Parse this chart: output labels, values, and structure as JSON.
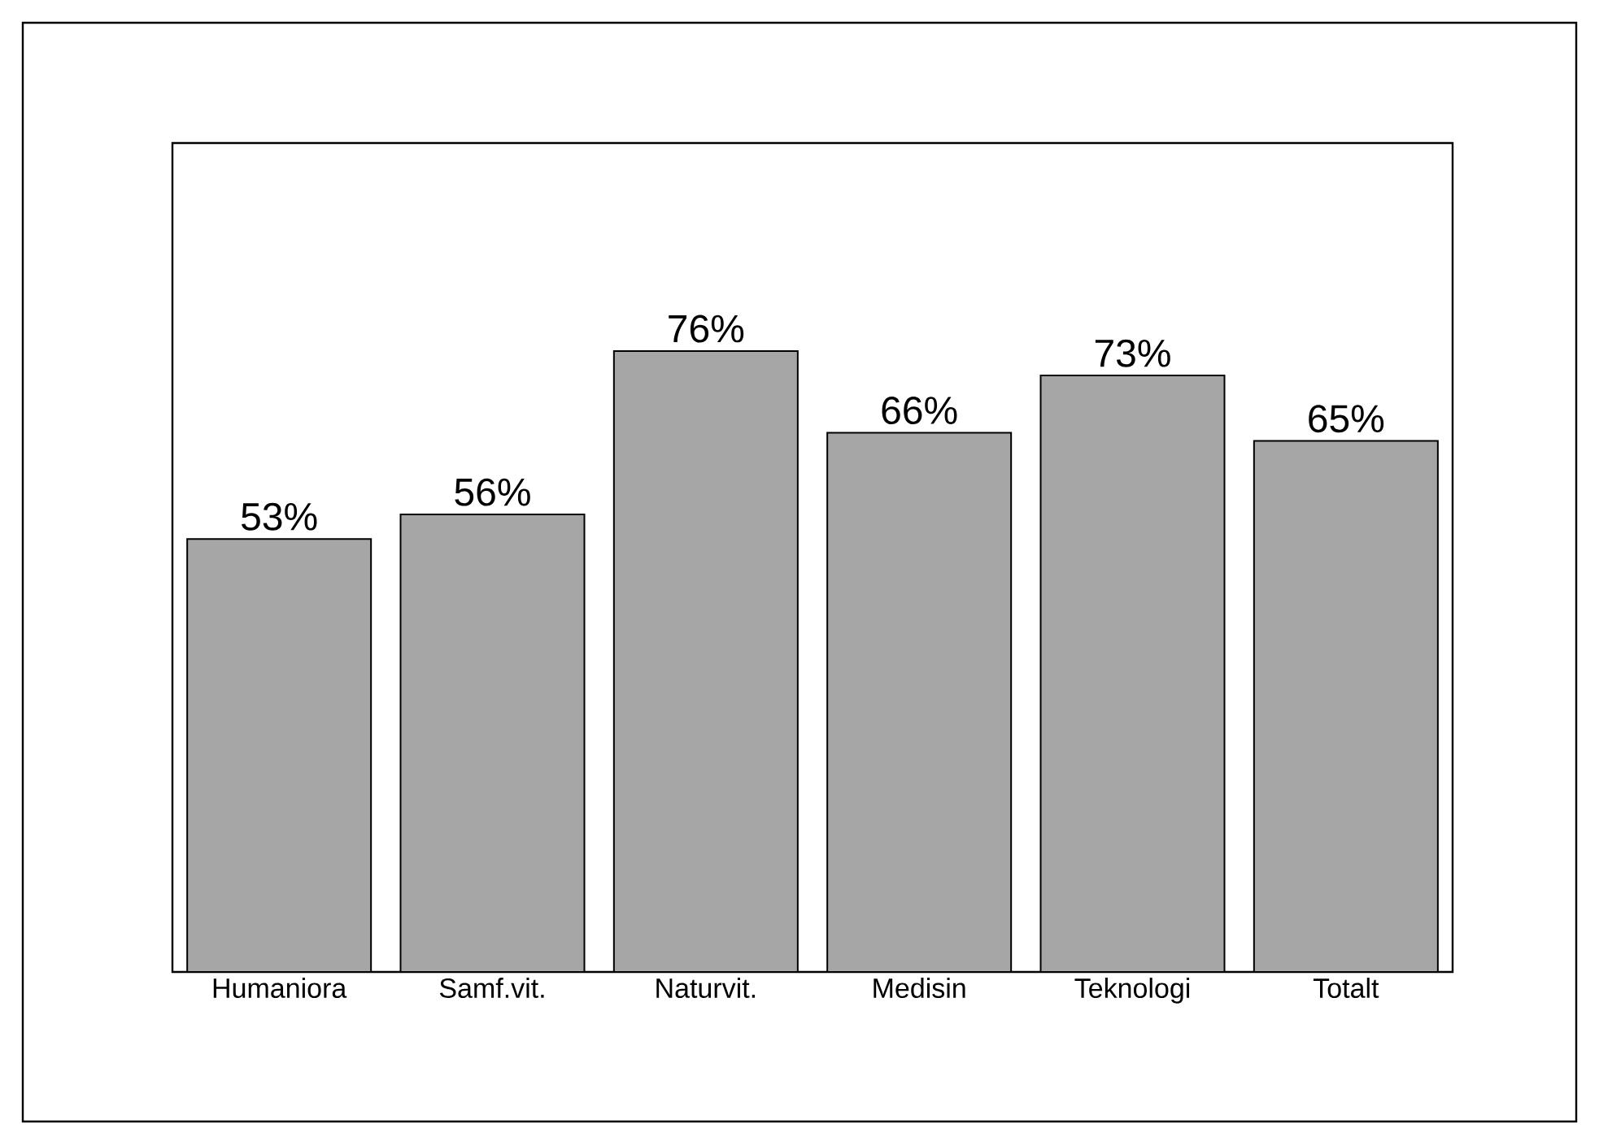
{
  "chart_data": {
    "type": "bar",
    "categories": [
      "Humaniora",
      "Samf.vit.",
      "Naturvit.",
      "Medisin",
      "Teknologi",
      "Totalt"
    ],
    "values": [
      53,
      56,
      76,
      66,
      73,
      65
    ],
    "value_labels": [
      "53%",
      "56%",
      "76%",
      "66%",
      "73%",
      "65%"
    ],
    "color": "#a6a6a6",
    "tick_labels": "x"
  }
}
